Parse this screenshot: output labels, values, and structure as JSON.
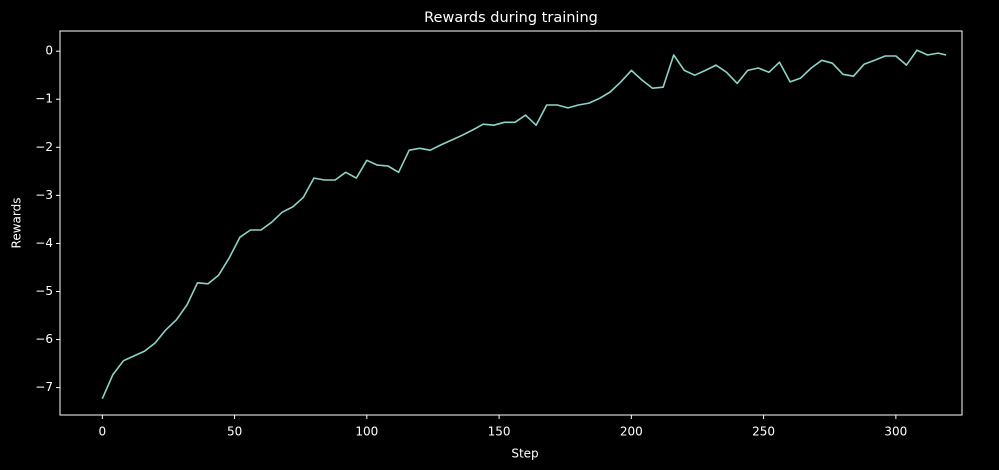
{
  "chart_data": {
    "type": "line",
    "title": "Rewards during training",
    "xlabel": "Step",
    "ylabel": "Rewards",
    "x": [
      0,
      4,
      8,
      12,
      16,
      20,
      24,
      28,
      32,
      36,
      40,
      44,
      48,
      52,
      56,
      60,
      64,
      68,
      72,
      76,
      80,
      84,
      88,
      92,
      96,
      100,
      104,
      108,
      112,
      116,
      120,
      124,
      128,
      132,
      136,
      140,
      144,
      148,
      152,
      156,
      160,
      164,
      168,
      172,
      176,
      180,
      184,
      188,
      192,
      196,
      200,
      204,
      208,
      212,
      216,
      220,
      224,
      228,
      232,
      236,
      240,
      244,
      248,
      252,
      256,
      260,
      264,
      268,
      272,
      276,
      280,
      284,
      288,
      292,
      296,
      300,
      304,
      308,
      312,
      316,
      319
    ],
    "series": [
      {
        "name": "Rewards",
        "color": "#8dd3c7",
        "values": [
          -7.23,
          -6.73,
          -6.44,
          -6.34,
          -6.24,
          -6.07,
          -5.8,
          -5.59,
          -5.28,
          -4.82,
          -4.84,
          -4.66,
          -4.3,
          -3.87,
          -3.72,
          -3.72,
          -3.56,
          -3.35,
          -3.24,
          -3.04,
          -2.64,
          -2.68,
          -2.68,
          -2.52,
          -2.64,
          -2.27,
          -2.37,
          -2.39,
          -2.52,
          -2.06,
          -2.02,
          -2.06,
          -1.95,
          -1.85,
          -1.75,
          -1.64,
          -1.52,
          -1.54,
          -1.48,
          -1.48,
          -1.33,
          -1.54,
          -1.12,
          -1.12,
          -1.18,
          -1.12,
          -1.08,
          -0.98,
          -0.85,
          -0.64,
          -0.4,
          -0.6,
          -0.77,
          -0.75,
          -0.08,
          -0.4,
          -0.5,
          -0.4,
          -0.29,
          -0.44,
          -0.67,
          -0.4,
          -0.35,
          -0.44,
          -0.23,
          -0.64,
          -0.56,
          -0.35,
          -0.19,
          -0.25,
          -0.48,
          -0.52,
          -0.27,
          -0.19,
          -0.1,
          -0.1,
          -0.29,
          0.02,
          -0.08,
          -0.04,
          -0.08
        ]
      }
    ],
    "xlim": [
      -16,
      325
    ],
    "ylim": [
      -7.57,
      0.42
    ],
    "xticks": [
      0,
      50,
      100,
      150,
      200,
      250,
      300
    ],
    "yticks": [
      {
        "value": -7,
        "label": "−7"
      },
      {
        "value": -6,
        "label": "−6"
      },
      {
        "value": -5,
        "label": "−5"
      },
      {
        "value": -4,
        "label": "−4"
      },
      {
        "value": -3,
        "label": "−3"
      },
      {
        "value": -2,
        "label": "−2"
      },
      {
        "value": -1,
        "label": "−1"
      },
      0
    ]
  }
}
